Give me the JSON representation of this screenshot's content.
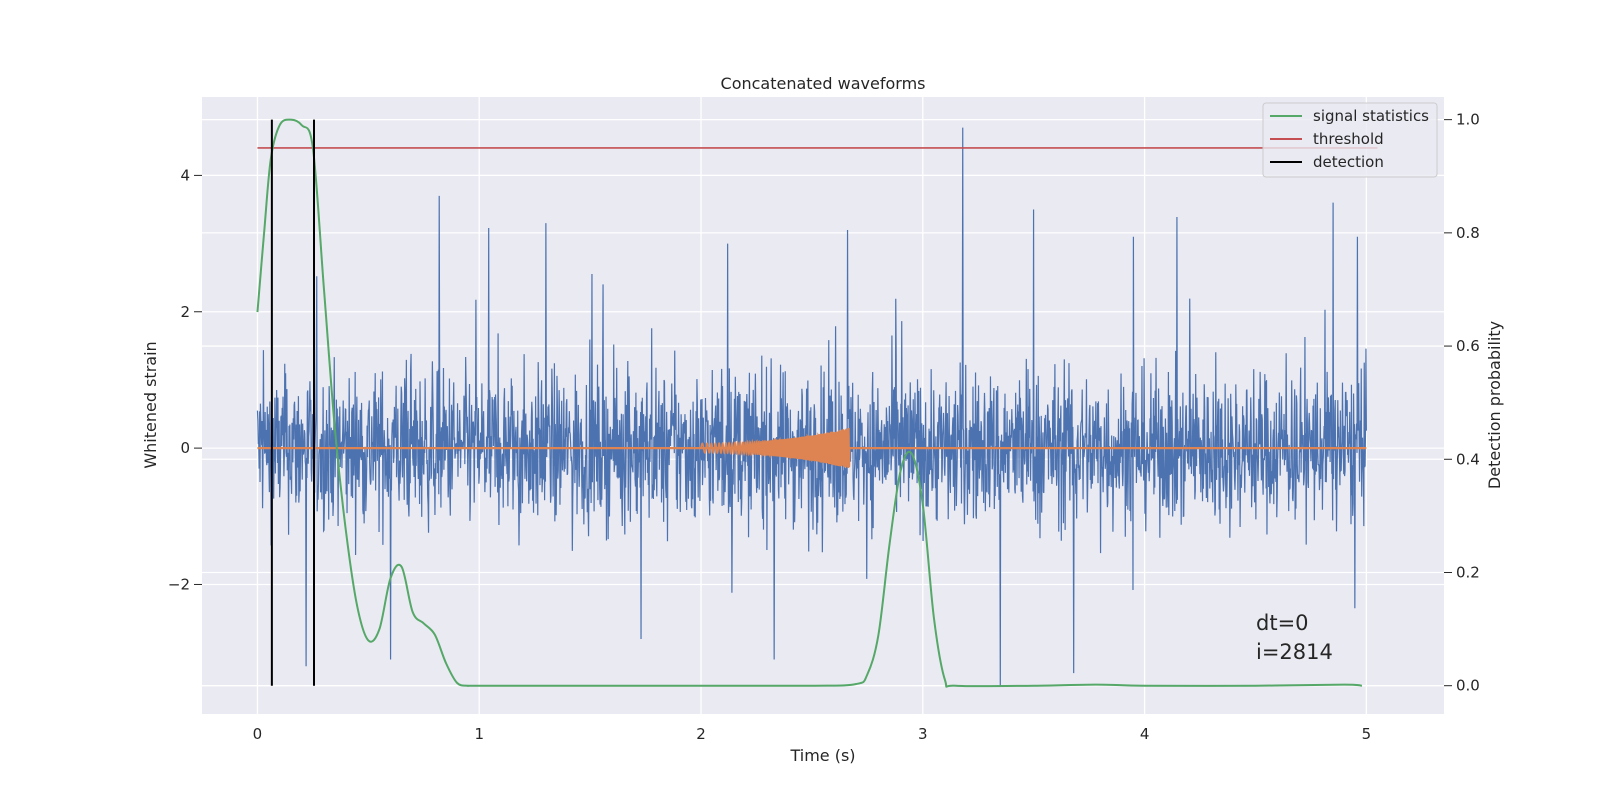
{
  "chart_data": {
    "type": "line",
    "title": "Concatenated waveforms",
    "xlabel": "Time (s)",
    "ylabel": "Whitened strain",
    "y2label": "Detection probability",
    "xlim": [
      -0.25,
      5.35
    ],
    "ylim": [
      -3.9,
      5.15
    ],
    "y2lim": [
      -0.05,
      1.04
    ],
    "x_ticks": [
      0,
      1,
      2,
      3,
      4,
      5
    ],
    "y_ticks": [
      -2,
      0,
      2,
      4
    ],
    "y2_ticks": [
      0.0,
      0.2,
      0.4,
      0.6,
      0.8,
      1.0
    ],
    "x_tick_labels": [
      "0",
      "1",
      "2",
      "3",
      "4",
      "5"
    ],
    "y_tick_labels": [
      "−2",
      "0",
      "2",
      "4"
    ],
    "y2_tick_labels": [
      "0.0",
      "0.2",
      "0.4",
      "0.6",
      "0.8",
      "1.0"
    ],
    "grid": true,
    "legend_position": "top-right",
    "legend": [
      {
        "label": "signal statistics",
        "color": "#55a868"
      },
      {
        "label": "threshold",
        "color": "#c44e52"
      },
      {
        "label": "detection",
        "color": "#000000"
      }
    ],
    "strain": {
      "color": "#4c72b0",
      "x_range": [
        0,
        5
      ],
      "typical_envelope": [
        -1.5,
        1.5
      ],
      "peaks": [
        {
          "x": 0.82,
          "y": 3.7
        },
        {
          "x": 1.3,
          "y": 3.3
        },
        {
          "x": 2.12,
          "y": 3.0
        },
        {
          "x": 2.66,
          "y": 3.2
        },
        {
          "x": 3.18,
          "y": 4.7
        },
        {
          "x": 3.5,
          "y": 3.5
        },
        {
          "x": 3.95,
          "y": 3.1
        },
        {
          "x": 4.85,
          "y": 3.6
        },
        {
          "x": 4.96,
          "y": 3.1
        },
        {
          "x": 0.22,
          "y": -3.2
        },
        {
          "x": 0.6,
          "y": -3.1
        },
        {
          "x": 1.73,
          "y": -2.8
        },
        {
          "x": 2.33,
          "y": -3.1
        },
        {
          "x": 3.35,
          "y": -3.5
        },
        {
          "x": 3.68,
          "y": -3.3
        }
      ]
    },
    "template": {
      "color": "#dd8452",
      "x_start": 2.0,
      "x_end": 2.67,
      "amp_start": 0.07,
      "amp_end": 0.3
    },
    "signal_statistics": {
      "color": "#55a868",
      "x": [
        0,
        0.03,
        0.06,
        0.1,
        0.15,
        0.2,
        0.25,
        0.3,
        0.35,
        0.4,
        0.45,
        0.5,
        0.55,
        0.6,
        0.65,
        0.7,
        0.75,
        0.8,
        0.85,
        0.9,
        0.95,
        1.0,
        1.5,
        2.0,
        2.5,
        2.7,
        2.75,
        2.8,
        2.85,
        2.9,
        2.95,
        3.0,
        3.05,
        3.1,
        3.15,
        3.5,
        3.78,
        4.0,
        4.5,
        4.9,
        4.98
      ],
      "y": [
        0.66,
        0.8,
        0.93,
        0.99,
        1.0,
        0.99,
        0.95,
        0.7,
        0.45,
        0.27,
        0.14,
        0.08,
        0.1,
        0.19,
        0.21,
        0.13,
        0.11,
        0.09,
        0.04,
        0.005,
        0.0,
        0.0,
        0.0,
        0.0,
        0.0,
        0.003,
        0.02,
        0.09,
        0.25,
        0.38,
        0.41,
        0.32,
        0.12,
        0.01,
        0.0,
        0.0,
        0.002,
        0.0,
        0.0,
        0.002,
        0.0
      ]
    },
    "threshold": {
      "color": "#c44e52",
      "value": 0.95,
      "x_range": [
        0,
        5.05
      ]
    },
    "detections": {
      "color": "#000000",
      "x": [
        0.065,
        0.255
      ]
    },
    "annotations": [
      "dt=0",
      "i=2814"
    ]
  }
}
